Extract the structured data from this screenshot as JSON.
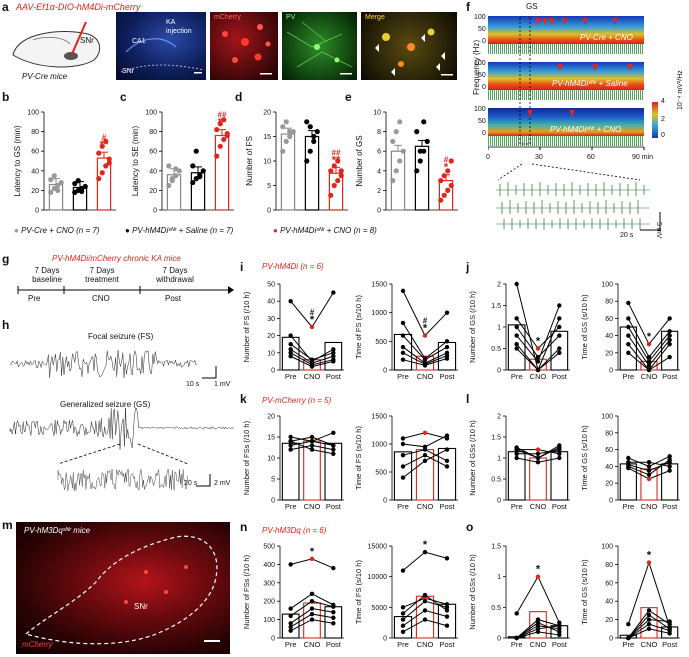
{
  "figure": {
    "panel_labels": [
      "a",
      "b",
      "c",
      "d",
      "e",
      "f",
      "g",
      "h",
      "i",
      "j",
      "k",
      "l",
      "m",
      "n",
      "o"
    ],
    "a": {
      "title": "AAV-Ef1α-DIO-hM4Di-mCherry",
      "mouse_label": "PV-Cre mice",
      "snr_label": "SNr",
      "ca1_label": "CA1",
      "ka_label": "KA injection",
      "snr_micro_label": "SNr",
      "mcherry_label": "mCherry",
      "pv_label": "PV",
      "merge_label": "Merge"
    },
    "f": {
      "gs_label": "GS",
      "freq_axis": "Frequency (Hz)",
      "power_unit": "10⁻⁴ mV²/Hz",
      "traces": [
        "PV-Cre + CNO",
        "PV-hM4Diˢᴺʳ + Saline",
        "PV-hM4Diˢᴺʳ + CNO"
      ],
      "time_ticks": [
        "0",
        "30",
        "60",
        "90 min"
      ],
      "scale_time": "20 s",
      "scale_volt": "5 mV",
      "colorbar_ticks": [
        "4",
        "2",
        "0"
      ],
      "freq_ticks": [
        "100",
        "50",
        "0"
      ]
    },
    "bar_panels_b_to_e": {
      "legend_1": "PV-Cre + CNO (n = 7)",
      "legend_2": "PV-hM4Diˢᴺʳ + Saline (n = 7)",
      "legend_3": "PV-hM4Diˢᴺʳ + CNO (n = 8)"
    },
    "g": {
      "title": "PV-hM4Di/mCherry chronic KA mice",
      "phases": [
        {
          "top": "7 Days",
          "mid": "baseline",
          "bottom": "Pre"
        },
        {
          "top": "7 Days",
          "mid": "treatment",
          "bottom": "CNO"
        },
        {
          "top": "7 Days",
          "mid": "withdrawal",
          "bottom": "Post"
        }
      ]
    },
    "h": {
      "focal_label": "Focal seizure (FS)",
      "general_label": "Generalized seizure (GS)",
      "scale_1": "10 s",
      "scale_1v": "1 mV",
      "scale_2": "20 s",
      "scale_2v": "2 mV"
    },
    "m": {
      "title": "PV-hM3Dqˢᴺʳ mice",
      "snr_label": "SNr",
      "mcherry_label": "mCherry"
    },
    "row_titles": {
      "i": "PV-hM4Di (n = 6)",
      "k": "PV-mCherry (n = 5)",
      "n": "PV-hM3Dq (n = 6)"
    },
    "x_categories": [
      "Pre",
      "CNO",
      "Post"
    ]
  },
  "chart_data": [
    {
      "id": "b",
      "type": "bar",
      "title": "",
      "ylabel": "Latency to GS (min)",
      "ylim": [
        0,
        100
      ],
      "yticks": [
        0,
        20,
        40,
        60,
        80,
        100
      ],
      "categories": [
        "PV-Cre + CNO",
        "PV-hM4Di + Saline",
        "PV-hM4Di + CNO"
      ],
      "values": [
        26,
        23,
        53
      ],
      "points": [
        [
          18,
          22,
          25,
          28,
          31,
          35,
          20
        ],
        [
          18,
          20,
          22,
          24,
          27,
          30,
          19
        ],
        [
          32,
          38,
          45,
          52,
          58,
          65,
          70,
          48
        ]
      ],
      "annotations": [
        "",
        "",
        "# **"
      ]
    },
    {
      "id": "c",
      "type": "bar",
      "title": "",
      "ylabel": "Latency to SE (min)",
      "ylim": [
        0,
        100
      ],
      "yticks": [
        0,
        20,
        40,
        60,
        80,
        100
      ],
      "categories": [
        "PV-Cre + CNO",
        "PV-hM4Di + Saline",
        "PV-hM4Di + CNO"
      ],
      "values": [
        36,
        38,
        76
      ],
      "points": [
        [
          25,
          30,
          35,
          40,
          45,
          32,
          42
        ],
        [
          28,
          32,
          36,
          40,
          45,
          60,
          34
        ],
        [
          55,
          65,
          72,
          78,
          82,
          88,
          92,
          76
        ]
      ],
      "annotations": [
        "",
        "",
        "## **"
      ]
    },
    {
      "id": "d",
      "type": "bar",
      "title": "",
      "ylabel": "Number of FS",
      "ylim": [
        0,
        20
      ],
      "yticks": [
        0,
        5,
        10,
        15,
        20
      ],
      "categories": [
        "PV-Cre + CNO",
        "PV-hM4Di + Saline",
        "PV-hM4Di + CNO"
      ],
      "values": [
        15.5,
        15,
        7.5
      ],
      "points": [
        [
          12,
          14,
          15,
          16,
          17,
          18,
          16
        ],
        [
          10,
          12,
          14,
          16,
          18,
          17,
          15
        ],
        [
          3,
          5,
          6,
          7,
          8,
          9,
          10,
          8
        ]
      ],
      "annotations": [
        "",
        "",
        "## **"
      ]
    },
    {
      "id": "e",
      "type": "bar",
      "title": "",
      "ylabel": "Number of GS",
      "ylim": [
        0,
        10
      ],
      "yticks": [
        0,
        2,
        4,
        6,
        8,
        10
      ],
      "categories": [
        "PV-Cre + CNO",
        "PV-hM4Di + Saline",
        "PV-hM4Di + CNO"
      ],
      "values": [
        6,
        6.5,
        3
      ],
      "points": [
        [
          3,
          4,
          5,
          6,
          7,
          8,
          9
        ],
        [
          4,
          5,
          6,
          7,
          8,
          6,
          9
        ],
        [
          1,
          1.5,
          2,
          2.5,
          3,
          3.5,
          4,
          5
        ]
      ],
      "annotations": [
        "",
        "",
        "# *"
      ]
    },
    {
      "id": "i1",
      "type": "bar",
      "ylabel": "Number of FS (/10 h)",
      "ylim": [
        0,
        50
      ],
      "yticks": [
        0,
        10,
        20,
        30,
        40,
        50
      ],
      "categories": [
        "Pre",
        "CNO",
        "Post"
      ],
      "values": [
        19,
        6,
        16
      ],
      "annotations": [
        "",
        "# *",
        ""
      ],
      "lines": [
        [
          40,
          25,
          45
        ],
        [
          20,
          5,
          12
        ],
        [
          15,
          6,
          10
        ],
        [
          12,
          4,
          8
        ],
        [
          10,
          3,
          6
        ],
        [
          8,
          2,
          5
        ]
      ],
      "highlight_mid": [
        25
      ]
    },
    {
      "id": "i2",
      "type": "bar",
      "ylabel": "Time of FS (s/10 h)",
      "ylim": [
        0,
        1500
      ],
      "yticks": [
        0,
        500,
        1000,
        1500
      ],
      "categories": [
        "Pre",
        "CNO",
        "Post"
      ],
      "values": [
        620,
        240,
        480
      ],
      "annotations": [
        "",
        "# *",
        ""
      ],
      "lines": [
        [
          1380,
          600,
          1000
        ],
        [
          820,
          200,
          500
        ],
        [
          600,
          180,
          400
        ],
        [
          400,
          120,
          300
        ],
        [
          300,
          100,
          250
        ],
        [
          180,
          80,
          200
        ]
      ],
      "highlight_mid": [
        600
      ]
    },
    {
      "id": "j1",
      "type": "bar",
      "ylabel": "Number of GS (/10 h)",
      "ylim": [
        0,
        2.0
      ],
      "yticks": [
        0,
        0.5,
        1.0,
        1.5,
        2.0
      ],
      "categories": [
        "Pre",
        "CNO",
        "Post"
      ],
      "values": [
        1.05,
        0.25,
        0.9
      ],
      "annotations": [
        "",
        "*",
        ""
      ],
      "lines": [
        [
          2.0,
          0.0,
          1.2
        ],
        [
          1.2,
          0.5,
          1.0
        ],
        [
          1.0,
          0.3,
          0.8
        ],
        [
          0.8,
          0.2,
          1.5
        ],
        [
          0.6,
          0.0,
          0.5
        ],
        [
          0.5,
          0.0,
          0.4
        ]
      ],
      "highlight_mid": [
        0.5
      ]
    },
    {
      "id": "j2",
      "type": "bar",
      "ylabel": "Time of GS (s/10 h)",
      "ylim": [
        0,
        100
      ],
      "yticks": [
        0,
        20,
        40,
        60,
        80,
        100
      ],
      "categories": [
        "Pre",
        "CNO",
        "Post"
      ],
      "values": [
        50,
        10,
        45
      ],
      "annotations": [
        "",
        "*",
        ""
      ],
      "lines": [
        [
          78,
          30,
          60
        ],
        [
          60,
          15,
          45
        ],
        [
          50,
          10,
          40
        ],
        [
          40,
          5,
          35
        ],
        [
          30,
          0,
          30
        ],
        [
          20,
          0,
          15
        ]
      ],
      "highlight_mid": [
        30
      ]
    },
    {
      "id": "k1",
      "type": "bar",
      "ylabel": "Number of FSs (/10 h)",
      "ylim": [
        0,
        20
      ],
      "yticks": [
        0,
        5,
        10,
        15,
        20
      ],
      "categories": [
        "Pre",
        "CNO",
        "Post"
      ],
      "values": [
        13.5,
        14,
        13.5
      ],
      "annotations": [
        "",
        "",
        ""
      ],
      "lines": [
        [
          13,
          14,
          16
        ],
        [
          14,
          15,
          13
        ],
        [
          12,
          13,
          12
        ],
        [
          14,
          12,
          11
        ],
        [
          15,
          14,
          13
        ]
      ],
      "highlight_mid": [
        14.5
      ]
    },
    {
      "id": "k2",
      "type": "bar",
      "ylabel": "Time of FS (s/10 h)",
      "ylim": [
        0,
        1500
      ],
      "yticks": [
        0,
        500,
        1000,
        1500
      ],
      "categories": [
        "Pre",
        "CNO",
        "Post"
      ],
      "values": [
        860,
        900,
        920
      ],
      "annotations": [
        "",
        "",
        ""
      ],
      "lines": [
        [
          1100,
          1200,
          1100
        ],
        [
          1000,
          950,
          1150
        ],
        [
          800,
          900,
          700
        ],
        [
          600,
          800,
          600
        ],
        [
          400,
          700,
          900
        ]
      ],
      "highlight_mid": [
        1200
      ]
    },
    {
      "id": "l1",
      "type": "bar",
      "ylabel": "Number of GSs (/10 h)",
      "ylim": [
        0,
        2.0
      ],
      "yticks": [
        0,
        0.5,
        1.0,
        1.5,
        2.0
      ],
      "categories": [
        "Pre",
        "CNO",
        "Post"
      ],
      "values": [
        1.15,
        1.0,
        1.15
      ],
      "annotations": [
        "",
        "",
        ""
      ],
      "lines": [
        [
          1.25,
          1.0,
          1.3
        ],
        [
          1.2,
          1.2,
          1.1
        ],
        [
          1.1,
          1.1,
          1.2
        ],
        [
          1.0,
          0.9,
          1.0
        ],
        [
          1.2,
          1.0,
          1.25
        ]
      ],
      "highlight_mid": [
        1.2
      ]
    },
    {
      "id": "l2",
      "type": "bar",
      "ylabel": "Time of GS (s/10 h)",
      "ylim": [
        0,
        100
      ],
      "yticks": [
        0,
        20,
        40,
        60,
        80,
        100
      ],
      "categories": [
        "Pre",
        "CNO",
        "Post"
      ],
      "values": [
        43,
        37,
        43
      ],
      "annotations": [
        "",
        "",
        ""
      ],
      "lines": [
        [
          50,
          40,
          52
        ],
        [
          45,
          45,
          40
        ],
        [
          42,
          35,
          45
        ],
        [
          38,
          25,
          35
        ],
        [
          40,
          30,
          48
        ]
      ],
      "highlight_mid": [
        25
      ]
    },
    {
      "id": "n1",
      "type": "bar",
      "ylabel": "Number of FSs (/10 h)",
      "ylim": [
        0,
        500
      ],
      "yticks": [
        0,
        100,
        200,
        300,
        400,
        500
      ],
      "categories": [
        "Pre",
        "CNO",
        "Post"
      ],
      "values": [
        130,
        190,
        170
      ],
      "annotations": [
        "",
        "*",
        ""
      ],
      "lines": [
        [
          400,
          430,
          380
        ],
        [
          160,
          240,
          180
        ],
        [
          120,
          200,
          170
        ],
        [
          80,
          160,
          140
        ],
        [
          60,
          130,
          110
        ],
        [
          40,
          100,
          80
        ]
      ],
      "highlight_mid": [
        430
      ]
    },
    {
      "id": "n2",
      "type": "bar",
      "ylabel": "Time of FS (s/10 h)",
      "ylim": [
        0,
        15000
      ],
      "yticks": [
        0,
        5000,
        10000,
        15000
      ],
      "categories": [
        "Pre",
        "CNO",
        "Post"
      ],
      "values": [
        3500,
        6800,
        5500
      ],
      "annotations": [
        "",
        "*",
        ""
      ],
      "lines": [
        [
          11000,
          14000,
          13000
        ],
        [
          5000,
          6500,
          5500
        ],
        [
          4000,
          7000,
          4500
        ],
        [
          3000,
          6000,
          5000
        ],
        [
          2000,
          4500,
          3500
        ],
        [
          1000,
          3000,
          2000
        ]
      ],
      "highlight_mid": [
        6500
      ]
    },
    {
      "id": "o1",
      "type": "bar",
      "ylabel": "Number of GSs (/10 h)",
      "ylim": [
        0,
        1.5
      ],
      "yticks": [
        0,
        0.5,
        1.0,
        1.5
      ],
      "categories": [
        "Pre",
        "CNO",
        "Post"
      ],
      "values": [
        0.02,
        0.43,
        0.2
      ],
      "annotations": [
        "",
        "*",
        ""
      ],
      "lines": [
        [
          0.4,
          1.0,
          0.25
        ],
        [
          0.0,
          0.3,
          0.2
        ],
        [
          0.0,
          0.25,
          0.1
        ],
        [
          0.0,
          0.2,
          0.15
        ],
        [
          0.0,
          0.15,
          0.2
        ],
        [
          0.0,
          0.1,
          0.05
        ]
      ],
      "highlight_mid": [
        1.0
      ]
    },
    {
      "id": "o2",
      "type": "bar",
      "ylabel": "Time of GS (s/10 h)",
      "ylim": [
        0,
        100
      ],
      "yticks": [
        0,
        20,
        40,
        60,
        80,
        100
      ],
      "categories": [
        "Pre",
        "CNO",
        "Post"
      ],
      "values": [
        3,
        33,
        12
      ],
      "annotations": [
        "",
        "*",
        ""
      ],
      "lines": [
        [
          15,
          82,
          12
        ],
        [
          0,
          30,
          15
        ],
        [
          0,
          25,
          10
        ],
        [
          0,
          20,
          18
        ],
        [
          0,
          15,
          8
        ],
        [
          0,
          10,
          5
        ]
      ],
      "highlight_mid": [
        82
      ]
    }
  ]
}
